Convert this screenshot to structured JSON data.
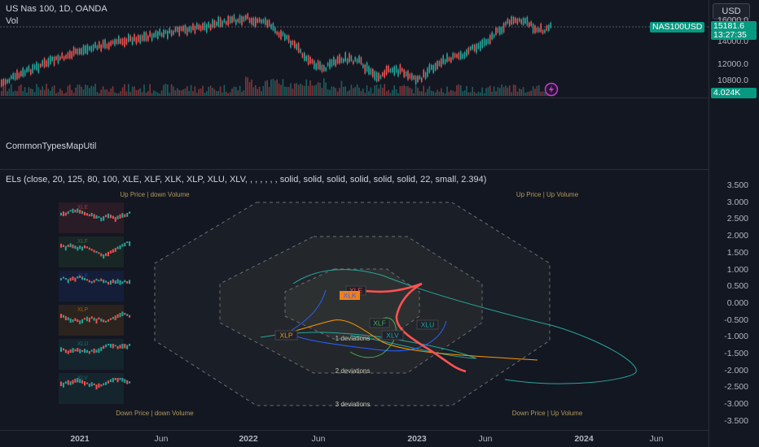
{
  "header": {
    "symbol_title": "US Nas 100, 1D, OANDA",
    "vol_label": "Vol",
    "currency_button": "USD"
  },
  "price_axis": {
    "ticks": [
      "16000.0",
      "14000.0",
      "12000.0",
      "10800.0"
    ],
    "symbol_badge": "NAS100USD",
    "price_badge": "15181.6",
    "countdown": "13:27:35",
    "volume_badge": "4.024K"
  },
  "indicator1": {
    "title": "CommonTypesMapUtil"
  },
  "indicator2": {
    "title": "ELs (close, 20, 125, 80, 100, XLE, XLF, XLK, XLP, XLU, XLV, , , , , , , solid, solid, solid, solid, solid, solid, 22, small, 2.394)",
    "y_ticks": [
      "3.500",
      "3.000",
      "2.500",
      "2.000",
      "1.500",
      "1.000",
      "0.500",
      "0.000",
      "-0.500",
      "-1.000",
      "-1.500",
      "-2.000",
      "-2.500",
      "-3.000",
      "-3.500"
    ],
    "quadrants": {
      "top_left": "Up Price | down Volume",
      "top_right": "Up Price | Up Volume",
      "bottom_left": "Down Price | down Volume",
      "bottom_right": "Down Price | Up Volume"
    },
    "deviations": [
      "1 deviations",
      "2 deviations",
      "3 deviations"
    ],
    "mini_labels": [
      "XLE",
      "XLF",
      "XLK",
      "XLP",
      "XLU",
      "XLV"
    ],
    "tickers": [
      {
        "name": "XLE",
        "color": "#ff5252",
        "bg": "#f57f17"
      },
      {
        "name": "XLK",
        "color": "#2962ff",
        "bg": "#f57f17"
      },
      {
        "name": "XLF",
        "color": "#4caf50",
        "bg": "#f57f17"
      },
      {
        "name": "XLU",
        "color": "#26a69a",
        "bg": "#1e222d"
      },
      {
        "name": "XLP",
        "color": "#ff9800",
        "bg": "#f57f17"
      },
      {
        "name": "XLV",
        "color": "#26a69a",
        "bg": "#f57f17"
      }
    ]
  },
  "time_axis": [
    "2021",
    "Jun",
    "2022",
    "Jun",
    "2023",
    "Jun",
    "2024",
    "Jun"
  ],
  "colors": {
    "background": "#131722",
    "up": "#26a69a",
    "down": "#ef5350",
    "badge_teal": "#089981"
  }
}
